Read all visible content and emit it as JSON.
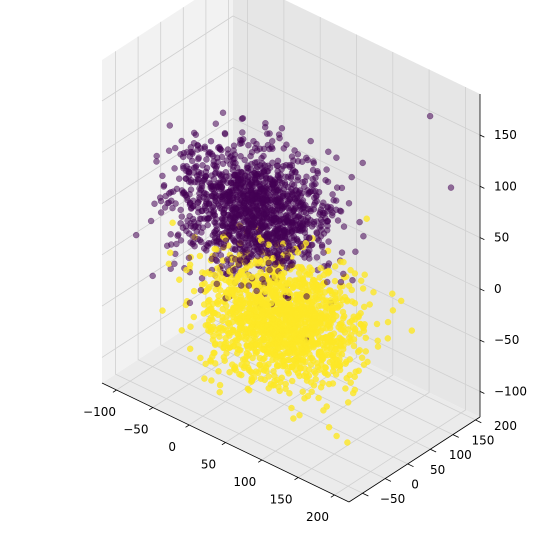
{
  "chart_data": {
    "type": "scatter",
    "projection": "3d",
    "title": "",
    "xlabel": "",
    "ylabel": "",
    "zlabel": "",
    "xlim": [
      -120,
      220
    ],
    "ylim": [
      -80,
      210
    ],
    "zlim": [
      -125,
      190
    ],
    "x_ticks": [
      -100,
      -50,
      0,
      50,
      100,
      150,
      200
    ],
    "y_ticks": [
      -50,
      0,
      50,
      100,
      150,
      200
    ],
    "z_ticks": [
      -100,
      -50,
      0,
      50,
      100,
      150
    ],
    "x_tick_labels": [
      "−100",
      "−50",
      "0",
      "50",
      "100",
      "150",
      "200"
    ],
    "y_tick_labels": [
      "−50",
      "0",
      "50",
      "100",
      "150",
      "200"
    ],
    "z_tick_labels": [
      "−100",
      "−50",
      "0",
      "50",
      "100",
      "150"
    ],
    "grid": true,
    "legend": "none",
    "colors": {
      "class_0": "#440154",
      "class_1": "#fde725",
      "pane_left": "#f2f2f2",
      "pane_right": "#e6e6e6",
      "pane_floor": "#ebebeb",
      "grid": "#d0d0d0"
    },
    "series": [
      {
        "class": "class_0",
        "color": "#440154",
        "opacity": 0.55,
        "count": 1400,
        "center": [
          -30,
          110,
          20
        ],
        "spread": [
          45,
          45,
          25
        ],
        "points": [
          [
            170,
            180,
            160
          ],
          [
            130,
            95,
            125
          ],
          [
            205,
            170,
            105
          ],
          [
            110,
            40,
            95
          ],
          [
            150,
            20,
            45
          ],
          [
            -5,
            10,
            -5
          ]
        ]
      },
      {
        "class": "class_1",
        "color": "#fde725",
        "opacity": 0.8,
        "count": 1400,
        "center": [
          40,
          60,
          -50
        ],
        "spread": [
          45,
          45,
          25
        ],
        "points": [
          [
            120,
            120,
            60
          ],
          [
            165,
            5,
            -110
          ],
          [
            10,
            80,
            -120
          ]
        ]
      }
    ]
  }
}
